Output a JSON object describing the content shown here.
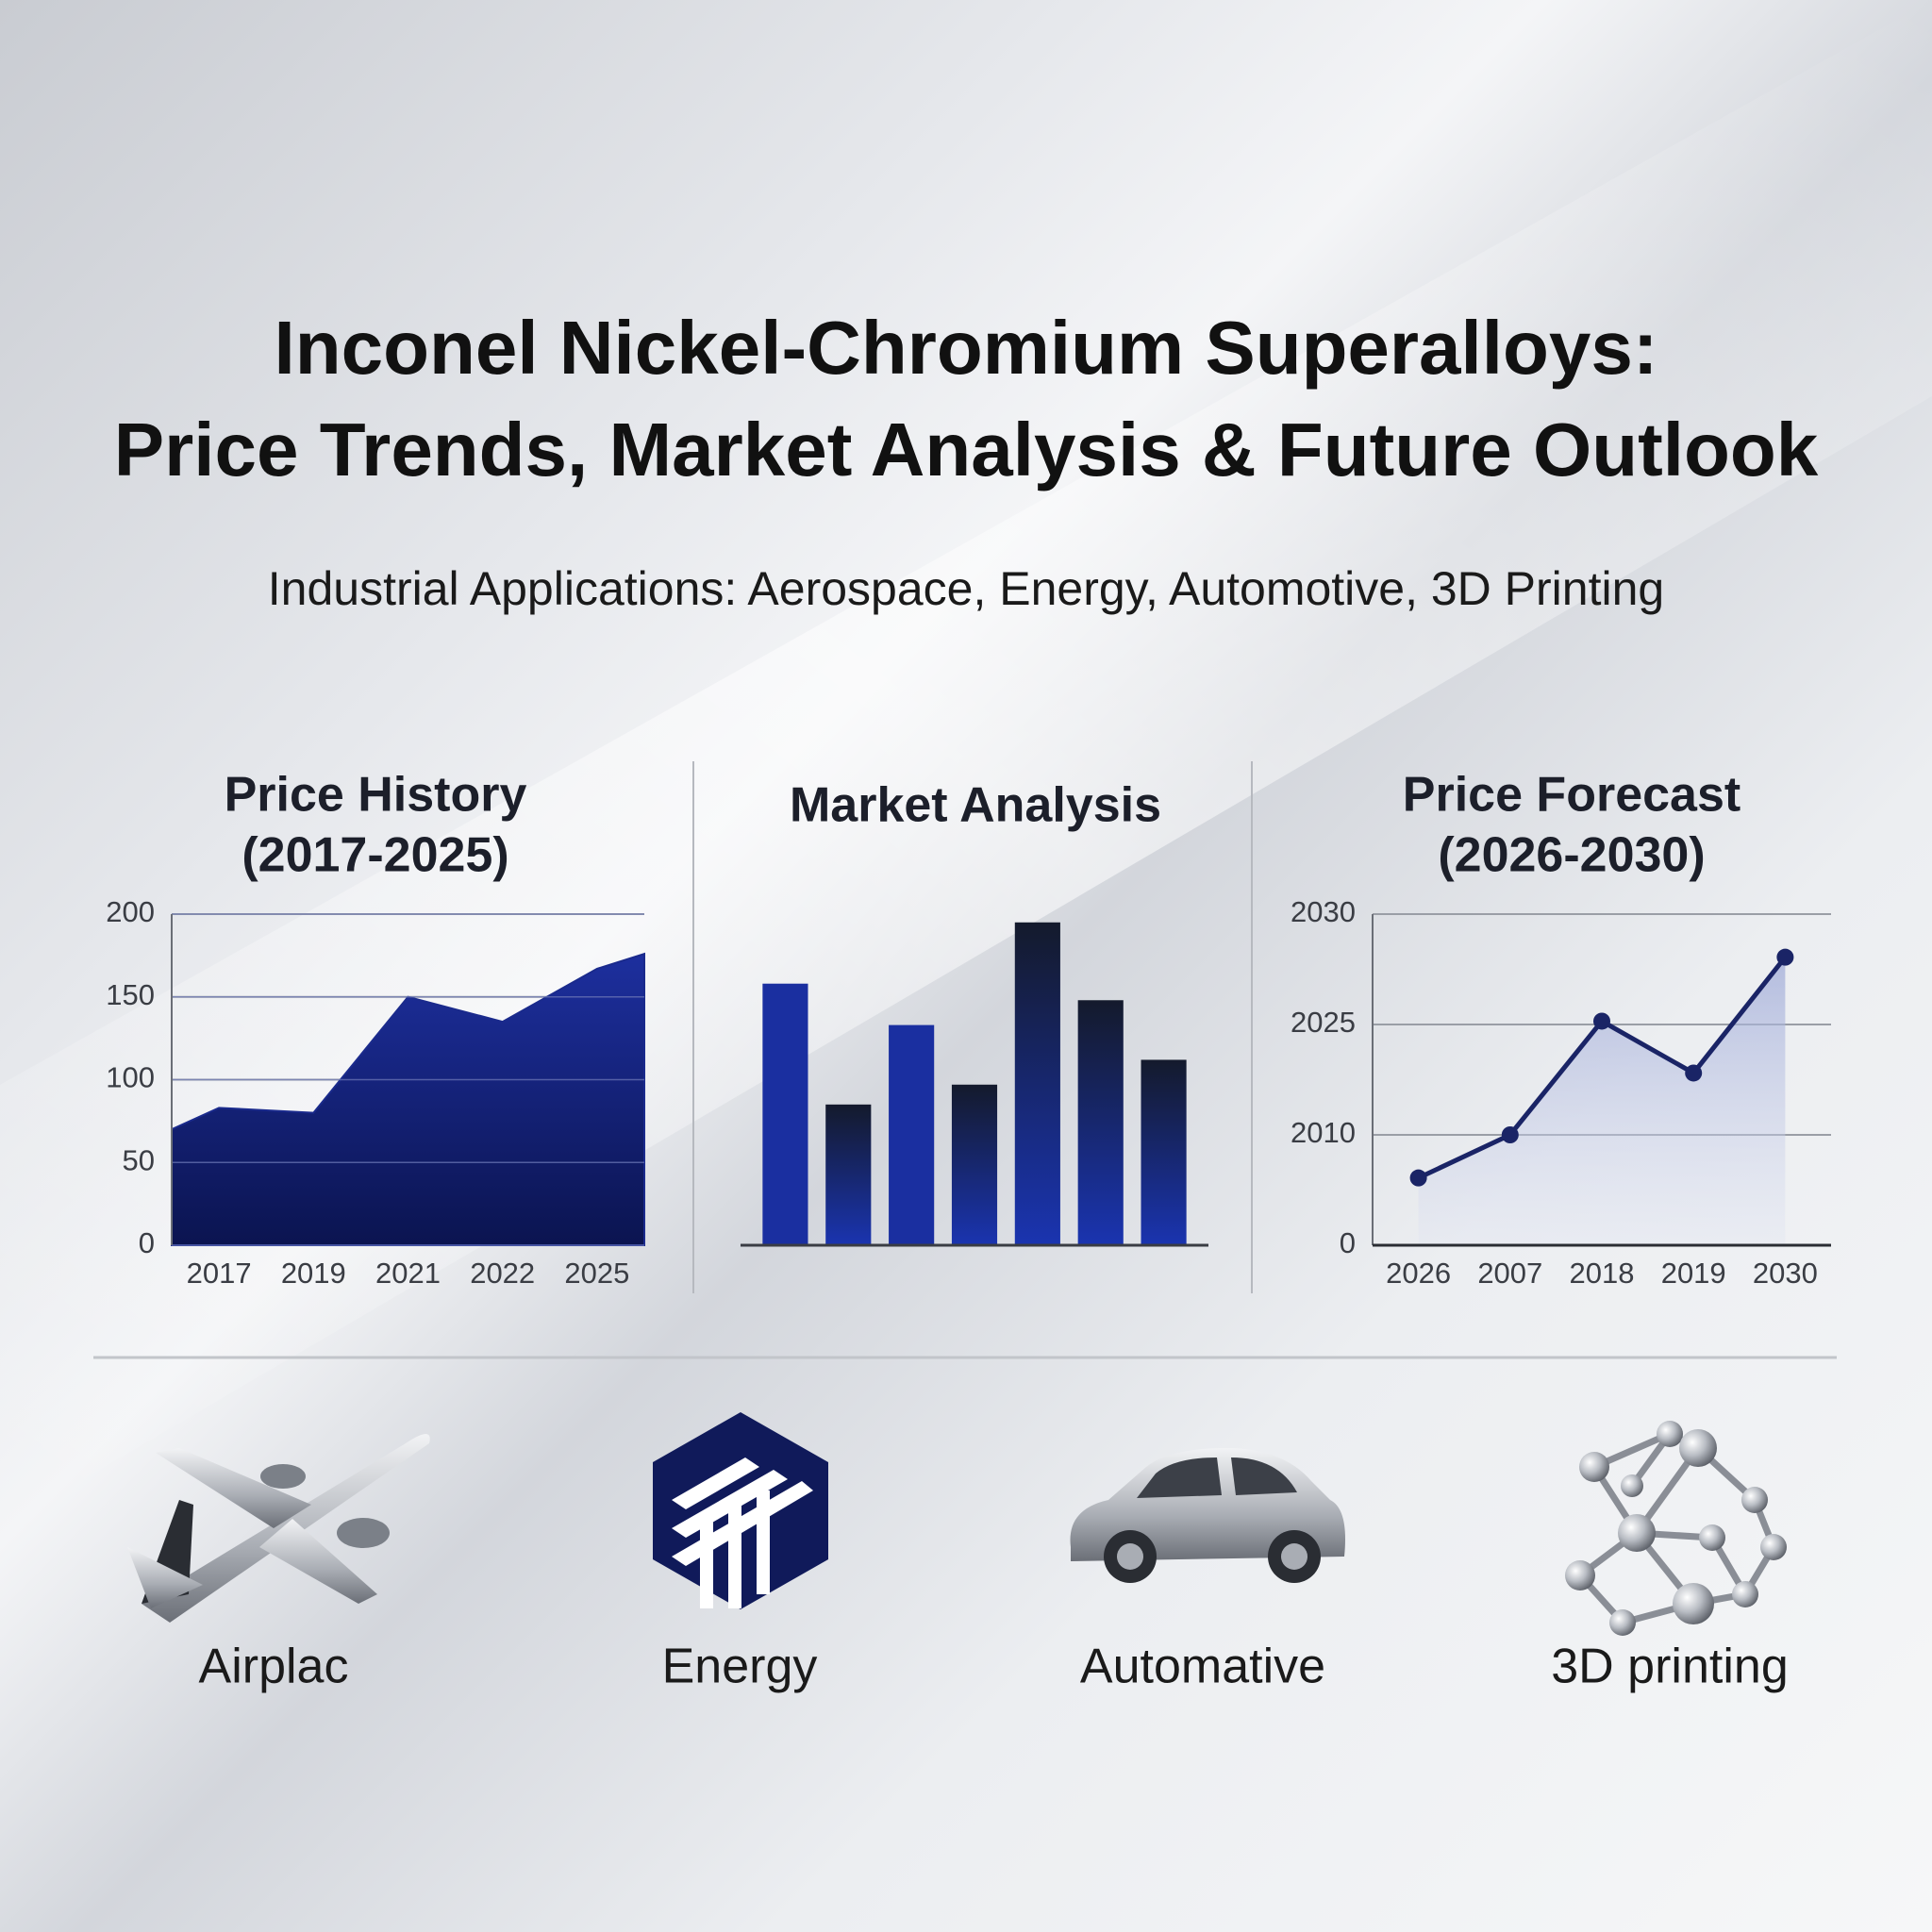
{
  "header": {
    "title_lines": [
      "Inconel Nickel-Chromium Superalloys:",
      "Price Trends, Market Analysis & Future Outlook"
    ],
    "subtitle": "Industrial Applications: Aerospace, Energy, Automotive, 3D Printing"
  },
  "chart_data": [
    {
      "type": "area",
      "title": "Price History",
      "subtitle": "(2017-2025)",
      "categories": [
        null,
        "2017",
        "2019",
        "2021",
        "2022",
        "2025",
        null
      ],
      "values": [
        70,
        83,
        80,
        150,
        135,
        167,
        176
      ],
      "color": "#1a2a8c",
      "ylim": [
        0,
        200
      ],
      "yticks": [
        0,
        50,
        100,
        150,
        200
      ],
      "grid": true
    },
    {
      "type": "bar",
      "title": "Market Analysis",
      "values": [
        158,
        85,
        133,
        97,
        195,
        148,
        112
      ],
      "color": "#1a2fa0",
      "ylim": [
        0,
        200
      ]
    },
    {
      "type": "line",
      "title": "Price Forecast",
      "subtitle": "(2026-2030)",
      "categories": [
        "2026",
        "2007",
        "2018",
        "2019",
        "2030"
      ],
      "values": [
        0.61,
        1.0,
        2.03,
        1.56,
        2.61
      ],
      "color": "#1a2466",
      "ylim": [
        0,
        3
      ],
      "yticks": [
        0,
        {
          "value": 1,
          "label": "2010"
        },
        {
          "value": 2,
          "label": "2025"
        },
        {
          "value": 3,
          "label": "2030"
        }
      ],
      "grid": true
    }
  ],
  "applications": [
    "Airplac",
    "Energy",
    "Automative",
    "3D printing"
  ]
}
